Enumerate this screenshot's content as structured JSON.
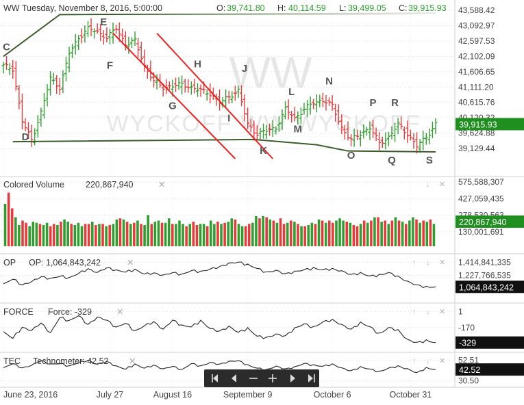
{
  "header": {
    "symbol": "WW",
    "date": "Tuesday, November 8, 2016, 5:00:00",
    "ohlc": [
      {
        "label": "O:",
        "value": "39,741.80"
      },
      {
        "label": "H:",
        "value": "40,114.59"
      },
      {
        "label": "L:",
        "value": "39,499.05"
      },
      {
        "label": "C:",
        "value": "39,915.93"
      }
    ]
  },
  "watermark": {
    "big": "WW",
    "wide": "WYCKOFF   WW   WYCKOFF"
  },
  "colors": {
    "up": "#2e9e2e",
    "down": "#e83a3a",
    "trend": "#3d5c2e",
    "channel": "#ee2222",
    "axis_text": "#444444",
    "grid": "#d8d8d8"
  },
  "xaxis": {
    "labels": [
      {
        "text": "June 23, 2016",
        "day": 0
      },
      {
        "text": "July 27",
        "day": 34
      },
      {
        "text": "August 16",
        "day": 54
      },
      {
        "text": "September 9",
        "day": 78
      },
      {
        "text": "October 6",
        "day": 105
      },
      {
        "text": "October 31",
        "day": 130
      }
    ],
    "last_day": 138
  },
  "nav_icons": [
    "skip-start-icon",
    "prev-icon",
    "zoom-out-icon",
    "zoom-in-icon",
    "next-icon",
    "skip-end-icon"
  ],
  "chart_data": [
    {
      "panel": "price",
      "type": "ohlc",
      "title": "WW",
      "yticks": [
        "43,588.42",
        "43,092.97",
        "42,597.53",
        "42,102.09",
        "41,606.65",
        "41,111.20",
        "40,615.76",
        "40,120.32",
        "39,624.88",
        "39,129.44"
      ],
      "ylim": [
        38800,
        43700
      ],
      "last_value": "39,915.93",
      "close_points": [
        [
          0,
          41800
        ],
        [
          3,
          41700
        ],
        [
          6,
          40000
        ],
        [
          9,
          39400
        ],
        [
          12,
          40300
        ],
        [
          15,
          41400
        ],
        [
          18,
          41100
        ],
        [
          21,
          42200
        ],
        [
          24,
          42700
        ],
        [
          27,
          43000
        ],
        [
          30,
          42900
        ],
        [
          33,
          42700
        ],
        [
          36,
          43000
        ],
        [
          39,
          42500
        ],
        [
          42,
          42600
        ],
        [
          45,
          41800
        ],
        [
          48,
          41300
        ],
        [
          51,
          41100
        ],
        [
          54,
          41150
        ],
        [
          57,
          41200
        ],
        [
          60,
          41100
        ],
        [
          63,
          41000
        ],
        [
          66,
          40900
        ],
        [
          69,
          40600
        ],
        [
          72,
          40800
        ],
        [
          75,
          41000
        ],
        [
          78,
          39900
        ],
        [
          81,
          39600
        ],
        [
          84,
          39700
        ],
        [
          87,
          39800
        ],
        [
          90,
          40400
        ],
        [
          93,
          40100
        ],
        [
          96,
          40400
        ],
        [
          99,
          40600
        ],
        [
          102,
          40700
        ],
        [
          105,
          40500
        ],
        [
          108,
          39800
        ],
        [
          111,
          39400
        ],
        [
          114,
          39600
        ],
        [
          117,
          39800
        ],
        [
          120,
          39300
        ],
        [
          123,
          39500
        ],
        [
          126,
          39900
        ],
        [
          129,
          39600
        ],
        [
          132,
          39200
        ],
        [
          135,
          39500
        ],
        [
          138,
          39916
        ]
      ],
      "trend_lines": [
        [
          [
            0,
            42102
          ],
          [
            18,
            43450
          ],
          [
            138,
            43500
          ]
        ],
        [
          [
            3,
            39350
          ],
          [
            80,
            39420
          ],
          [
            100,
            39250
          ],
          [
            110,
            39050
          ],
          [
            138,
            39020
          ]
        ]
      ],
      "channel_lines": [
        [
          [
            35,
            42850
          ],
          [
            74,
            38800
          ]
        ],
        [
          [
            49,
            42850
          ],
          [
            86,
            38800
          ]
        ]
      ],
      "annotations": [
        {
          "text": "C",
          "day": 1,
          "value": 42300
        },
        {
          "text": "D",
          "day": 7,
          "value": 39400
        },
        {
          "text": "E",
          "day": 32,
          "value": 43100
        },
        {
          "text": "F",
          "day": 34,
          "value": 41700
        },
        {
          "text": "G",
          "day": 54,
          "value": 40400
        },
        {
          "text": "H",
          "day": 62,
          "value": 41750
        },
        {
          "text": "I",
          "day": 72,
          "value": 40000
        },
        {
          "text": "J",
          "day": 77,
          "value": 41600
        },
        {
          "text": "K",
          "day": 83,
          "value": 38950
        },
        {
          "text": "L",
          "day": 92,
          "value": 40850
        },
        {
          "text": "M",
          "day": 94,
          "value": 39650
        },
        {
          "text": "N",
          "day": 104,
          "value": 41200
        },
        {
          "text": "O",
          "day": 111,
          "value": 38800
        },
        {
          "text": "P",
          "day": 118,
          "value": 40500
        },
        {
          "text": "Q",
          "day": 124,
          "value": 38650
        },
        {
          "text": "R",
          "day": 125,
          "value": 40500
        },
        {
          "text": "S",
          "day": 136,
          "value": 38650
        }
      ]
    },
    {
      "panel": "volume",
      "type": "bar",
      "title": "Colored Volume",
      "value_label": "220,867,940",
      "yticks": [
        "575,588,307",
        "427,059,435",
        "278,530,563",
        "130,001,691"
      ],
      "ylim": [
        0,
        575588307
      ],
      "last_value": "220,867,940",
      "values_millions": [
        380,
        480,
        340,
        260,
        190,
        230,
        210,
        180,
        220,
        210,
        200,
        190,
        210,
        180,
        200,
        190,
        220,
        240,
        220,
        200,
        190,
        210,
        180,
        200,
        200,
        220,
        190,
        200,
        200,
        180,
        190,
        200,
        240,
        250,
        240,
        220,
        200,
        210,
        230,
        200,
        190,
        280,
        200,
        220,
        230,
        210,
        210,
        250,
        200,
        200,
        230,
        200,
        180,
        200,
        220,
        190,
        200,
        200,
        180,
        230,
        200,
        220,
        200,
        210,
        220,
        250,
        240,
        200,
        180,
        180,
        200,
        210,
        270,
        250,
        270,
        260,
        240,
        230,
        210,
        250,
        200,
        210,
        230,
        220,
        200,
        180,
        180,
        190,
        210,
        200,
        240,
        230,
        210,
        230,
        210,
        230,
        250,
        230,
        220,
        210,
        190,
        180,
        200,
        230,
        210,
        230,
        260,
        260,
        220,
        230,
        200,
        230,
        260,
        230,
        220,
        200,
        230,
        260,
        240,
        210,
        230,
        220,
        240,
        200
      ],
      "colors": [
        "up",
        "down",
        "down",
        "up",
        "up",
        "down",
        "down",
        "up",
        "up",
        "up",
        "down",
        "up",
        "up",
        "down",
        "down",
        "up",
        "down",
        "up",
        "up",
        "down",
        "up",
        "up",
        "up",
        "down",
        "down",
        "up",
        "down",
        "up",
        "down",
        "up",
        "down",
        "up",
        "up",
        "down",
        "up",
        "down",
        "up",
        "down",
        "up",
        "down",
        "up",
        "up",
        "down",
        "up",
        "up",
        "down",
        "up",
        "up",
        "down",
        "up",
        "up",
        "up",
        "down",
        "up",
        "down",
        "down",
        "up",
        "up",
        "down",
        "up",
        "up",
        "down",
        "up",
        "down",
        "up",
        "up",
        "down",
        "up",
        "up",
        "down",
        "down",
        "up",
        "up",
        "down",
        "up",
        "down",
        "up",
        "down",
        "up",
        "down",
        "down",
        "up",
        "down",
        "up",
        "down",
        "up",
        "down",
        "up",
        "up",
        "down",
        "up",
        "down",
        "up",
        "down",
        "down",
        "up",
        "up",
        "up",
        "down",
        "up",
        "down",
        "down",
        "up",
        "down",
        "up",
        "down",
        "up",
        "down",
        "up",
        "down",
        "up",
        "down",
        "up",
        "down",
        "up",
        "down",
        "up",
        "up",
        "down",
        "up",
        "down",
        "up",
        "down",
        "up"
      ]
    },
    {
      "panel": "op",
      "type": "line",
      "title": "OP",
      "value_label": "OP: 1,064,843,242",
      "yticks": [
        "1,414,841,335",
        "1,227,766,535"
      ],
      "ylim": [
        960000000,
        1450000000
      ],
      "last_value": "1,064,843,242",
      "points": [
        [
          0,
          1100000000
        ],
        [
          3,
          1180000000
        ],
        [
          6,
          1090000000
        ],
        [
          9,
          1140000000
        ],
        [
          12,
          1210000000
        ],
        [
          15,
          1180000000
        ],
        [
          18,
          1220000000
        ],
        [
          21,
          1190000000
        ],
        [
          24,
          1260000000
        ],
        [
          27,
          1320000000
        ],
        [
          30,
          1270000000
        ],
        [
          33,
          1340000000
        ],
        [
          36,
          1300000000
        ],
        [
          39,
          1280000000
        ],
        [
          42,
          1310000000
        ],
        [
          45,
          1250000000
        ],
        [
          48,
          1260000000
        ],
        [
          51,
          1230000000
        ],
        [
          54,
          1270000000
        ],
        [
          57,
          1240000000
        ],
        [
          60,
          1300000000
        ],
        [
          63,
          1280000000
        ],
        [
          66,
          1320000000
        ],
        [
          69,
          1350000000
        ],
        [
          72,
          1400000000
        ],
        [
          75,
          1420000000
        ],
        [
          78,
          1380000000
        ],
        [
          81,
          1330000000
        ],
        [
          84,
          1270000000
        ],
        [
          87,
          1300000000
        ],
        [
          90,
          1250000000
        ],
        [
          93,
          1280000000
        ],
        [
          96,
          1310000000
        ],
        [
          99,
          1330000000
        ],
        [
          102,
          1310000000
        ],
        [
          105,
          1320000000
        ],
        [
          108,
          1290000000
        ],
        [
          111,
          1240000000
        ],
        [
          114,
          1260000000
        ],
        [
          117,
          1220000000
        ],
        [
          120,
          1230000000
        ],
        [
          123,
          1270000000
        ],
        [
          126,
          1210000000
        ],
        [
          129,
          1140000000
        ],
        [
          132,
          1090000000
        ],
        [
          135,
          1060000000
        ],
        [
          138,
          1064843242
        ]
      ]
    },
    {
      "panel": "force",
      "type": "line",
      "title": "FORCE",
      "value_label": "Force: -329",
      "yticks": [
        "1",
        "-170"
      ],
      "ylim": [
        -360,
        25
      ],
      "last_value": "-329",
      "points": [
        [
          0,
          -220
        ],
        [
          3,
          -280
        ],
        [
          6,
          -170
        ],
        [
          9,
          -200
        ],
        [
          12,
          -120
        ],
        [
          15,
          -230
        ],
        [
          18,
          -60
        ],
        [
          21,
          -100
        ],
        [
          24,
          -40
        ],
        [
          27,
          -140
        ],
        [
          30,
          -60
        ],
        [
          33,
          -90
        ],
        [
          36,
          -170
        ],
        [
          39,
          -120
        ],
        [
          42,
          -210
        ],
        [
          45,
          -150
        ],
        [
          48,
          -110
        ],
        [
          51,
          -190
        ],
        [
          54,
          -90
        ],
        [
          57,
          -150
        ],
        [
          60,
          -160
        ],
        [
          63,
          -100
        ],
        [
          66,
          -180
        ],
        [
          69,
          -210
        ],
        [
          72,
          -160
        ],
        [
          75,
          -220
        ],
        [
          78,
          -180
        ],
        [
          81,
          -260
        ],
        [
          84,
          -280
        ],
        [
          87,
          -240
        ],
        [
          90,
          -260
        ],
        [
          93,
          -180
        ],
        [
          96,
          -130
        ],
        [
          99,
          -170
        ],
        [
          102,
          -110
        ],
        [
          105,
          -90
        ],
        [
          108,
          -140
        ],
        [
          111,
          -190
        ],
        [
          114,
          -120
        ],
        [
          117,
          -160
        ],
        [
          120,
          -240
        ],
        [
          123,
          -170
        ],
        [
          126,
          -200
        ],
        [
          129,
          -300
        ],
        [
          132,
          -330
        ],
        [
          135,
          -310
        ],
        [
          138,
          -329
        ]
      ]
    },
    {
      "panel": "technometer",
      "type": "line",
      "title": "TEC",
      "value_label": "Technometer: 42.52",
      "yticks": [
        "52.51",
        "30.50"
      ],
      "ylim": [
        28,
        55
      ],
      "last_value": "42.52",
      "points": [
        [
          0,
          44
        ],
        [
          3,
          49
        ],
        [
          6,
          44
        ],
        [
          9,
          47
        ],
        [
          12,
          52
        ],
        [
          15,
          48
        ],
        [
          18,
          49
        ],
        [
          21,
          46
        ],
        [
          24,
          50
        ],
        [
          27,
          52
        ],
        [
          30,
          48
        ],
        [
          33,
          51
        ],
        [
          36,
          46
        ],
        [
          39,
          43
        ],
        [
          42,
          48
        ],
        [
          45,
          44
        ],
        [
          48,
          47
        ],
        [
          51,
          43
        ],
        [
          54,
          46
        ],
        [
          57,
          42
        ],
        [
          60,
          49
        ],
        [
          63,
          46
        ],
        [
          66,
          50
        ],
        [
          69,
          48
        ],
        [
          72,
          51
        ],
        [
          75,
          52
        ],
        [
          78,
          47
        ],
        [
          81,
          44
        ],
        [
          84,
          42
        ],
        [
          87,
          46
        ],
        [
          90,
          43
        ],
        [
          93,
          45
        ],
        [
          96,
          49
        ],
        [
          99,
          47
        ],
        [
          102,
          46
        ],
        [
          105,
          48
        ],
        [
          108,
          44
        ],
        [
          111,
          41
        ],
        [
          114,
          45
        ],
        [
          117,
          43
        ],
        [
          120,
          40
        ],
        [
          123,
          44
        ],
        [
          126,
          46
        ],
        [
          129,
          43
        ],
        [
          132,
          39
        ],
        [
          135,
          44
        ],
        [
          138,
          42.52
        ]
      ]
    }
  ]
}
